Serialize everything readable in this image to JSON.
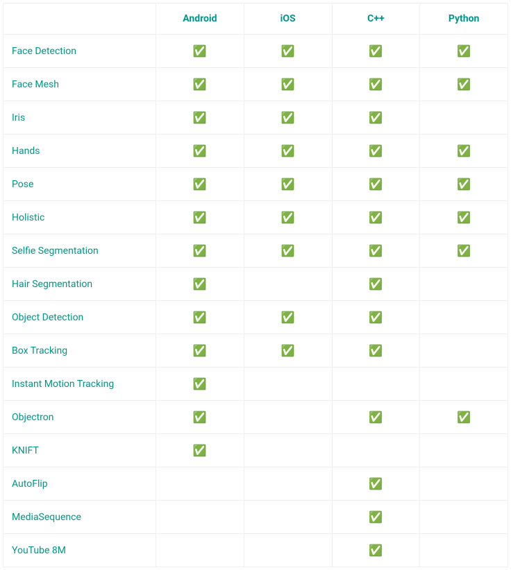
{
  "table": {
    "type": "table",
    "link_color": "#009688",
    "header_color": "#009688",
    "border_color": "#eceeef",
    "check_glyph": "✅",
    "columns": [
      "",
      "Android",
      "iOS",
      "C++",
      "Python"
    ],
    "rows": [
      {
        "label": "Face Detection",
        "cells": [
          true,
          true,
          true,
          true
        ]
      },
      {
        "label": "Face Mesh",
        "cells": [
          true,
          true,
          true,
          true
        ]
      },
      {
        "label": "Iris",
        "cells": [
          true,
          true,
          true,
          false
        ]
      },
      {
        "label": "Hands",
        "cells": [
          true,
          true,
          true,
          true
        ]
      },
      {
        "label": "Pose",
        "cells": [
          true,
          true,
          true,
          true
        ]
      },
      {
        "label": "Holistic",
        "cells": [
          true,
          true,
          true,
          true
        ]
      },
      {
        "label": "Selfie Segmentation",
        "cells": [
          true,
          true,
          true,
          true
        ]
      },
      {
        "label": "Hair Segmentation",
        "cells": [
          true,
          false,
          true,
          false
        ]
      },
      {
        "label": "Object Detection",
        "cells": [
          true,
          true,
          true,
          false
        ]
      },
      {
        "label": "Box Tracking",
        "cells": [
          true,
          true,
          true,
          false
        ]
      },
      {
        "label": "Instant Motion Tracking",
        "cells": [
          true,
          false,
          false,
          false
        ]
      },
      {
        "label": "Objectron",
        "cells": [
          true,
          false,
          true,
          true
        ]
      },
      {
        "label": "KNIFT",
        "cells": [
          true,
          false,
          false,
          false
        ]
      },
      {
        "label": "AutoFlip",
        "cells": [
          false,
          false,
          true,
          false
        ]
      },
      {
        "label": "MediaSequence",
        "cells": [
          false,
          false,
          true,
          false
        ]
      },
      {
        "label": "YouTube 8M",
        "cells": [
          false,
          false,
          true,
          false
        ]
      }
    ]
  }
}
